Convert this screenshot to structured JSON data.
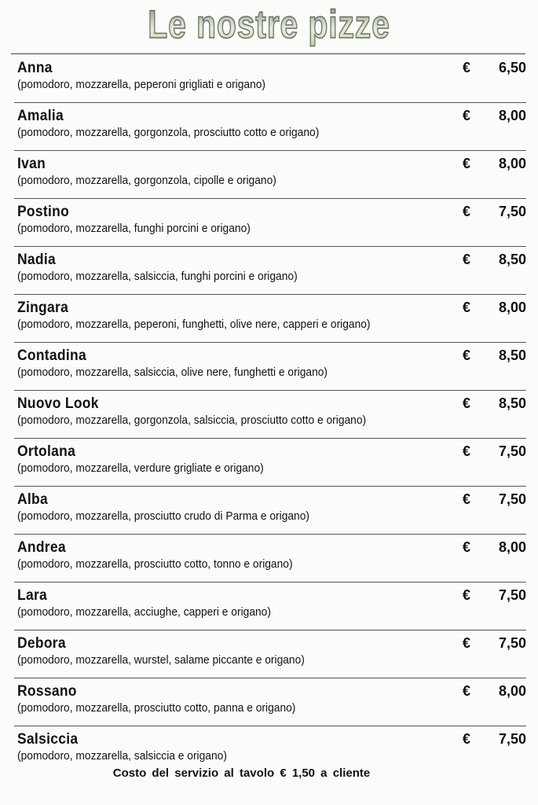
{
  "title": "Le nostre pizze",
  "currency": "€",
  "items": [
    {
      "name": "Anna",
      "ingredients": "(pomodoro, mozzarella, peperoni grigliati e origano)",
      "price": "6,50"
    },
    {
      "name": "Amalia",
      "ingredients": "(pomodoro, mozzarella, gorgonzola, prosciutto cotto e origano)",
      "price": "8,00"
    },
    {
      "name": "Ivan",
      "ingredients": "(pomodoro, mozzarella, gorgonzola, cipolle e origano)",
      "price": "8,00"
    },
    {
      "name": "Postino",
      "ingredients": "(pomodoro, mozzarella, funghi porcini e origano)",
      "price": "7,50"
    },
    {
      "name": "Nadia",
      "ingredients": "(pomodoro, mozzarella, salsiccia, funghi porcini e origano)",
      "price": "8,50"
    },
    {
      "name": "Zingara",
      "ingredients": "(pomodoro, mozzarella, peperoni, funghetti, olive nere, capperi e origano)",
      "price": "8,00"
    },
    {
      "name": "Contadina",
      "ingredients": "(pomodoro, mozzarella, salsiccia, olive nere, funghetti e origano)",
      "price": "8,50"
    },
    {
      "name": "Nuovo Look",
      "ingredients": "(pomodoro, mozzarella, gorgonzola, salsiccia, prosciutto cotto e origano)",
      "price": "8,50"
    },
    {
      "name": "Ortolana",
      "ingredients": "(pomodoro, mozzarella, verdure grigliate e origano)",
      "price": "7,50"
    },
    {
      "name": "Alba",
      "ingredients": "(pomodoro, mozzarella, prosciutto crudo di Parma e origano)",
      "price": "7,50"
    },
    {
      "name": "Andrea",
      "ingredients": "(pomodoro, mozzarella, prosciutto cotto, tonno e origano)",
      "price": "8,00"
    },
    {
      "name": "Lara",
      "ingredients": "(pomodoro, mozzarella, acciughe, capperi e origano)",
      "price": "7,50"
    },
    {
      "name": "Debora",
      "ingredients": "(pomodoro, mozzarella, wurstel, salame piccante e origano)",
      "price": "7,50"
    },
    {
      "name": "Rossano",
      "ingredients": "(pomodoro, mozzarella, prosciutto cotto, panna e origano)",
      "price": "8,00"
    },
    {
      "name": "Salsiccia",
      "ingredients": "(pomodoro, mozzarella, salsiccia e origano)",
      "price": "7,50"
    }
  ],
  "footer": "Costo del servizio al tavolo € 1,50 a cliente"
}
